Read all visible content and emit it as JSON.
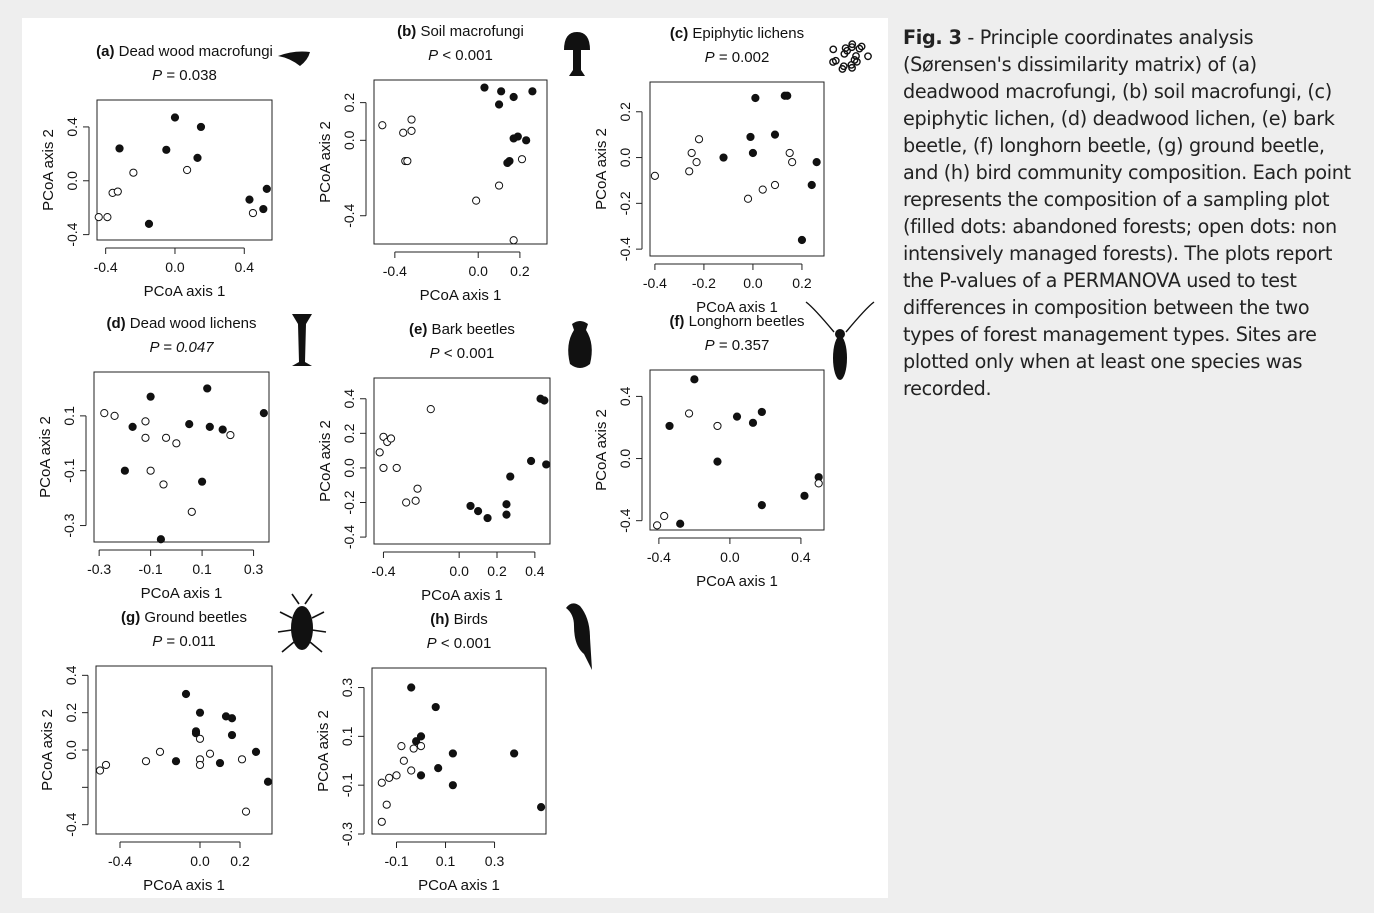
{
  "caption": {
    "label": "Fig. 3",
    "text": " - Principle coordinates analysis (Sørensen's dissimilarity matrix) of (a) deadwood macrofungi, (b) soil macrofungi, (c) epiphytic lichen, (d) deadwood lichen, (e) bark beetle, (f) longhorn beetle, (g) ground beetle, and (h) bird community composition. Each point represents the composition of a sampling plot (filled dots: abandoned forests; open dots: non intensively managed forests). The plots report the P-values of a PERMANOVA used to test differences in composition between the two types of forest management types. Sites are plotted only when at least one species was recorded."
  },
  "chart_data": [
    {
      "type": "scatter",
      "tag": "(a)",
      "title": "Dead wood macrofungi",
      "p_label": "P",
      "p_value": "= 0.038",
      "p_italic": false,
      "icon": "fungus-bracket-icon",
      "xlabel": "PCoA axis 1",
      "ylabel": "PCoA axis 2",
      "xlim": [
        -0.45,
        0.56
      ],
      "ylim": [
        -0.44,
        0.6
      ],
      "xticks": [
        -0.4,
        0.0,
        0.4
      ],
      "xtick_labels": [
        "-0.4",
        "0.0",
        "0.4"
      ],
      "yticks": [
        -0.4,
        0.0,
        0.4
      ],
      "ytick_labels": [
        "-0.4",
        "0.0",
        "0.4"
      ],
      "series": [
        {
          "marker": "filled",
          "points": [
            [
              -0.32,
              0.24
            ],
            [
              -0.05,
              0.23
            ],
            [
              0.0,
              0.47
            ],
            [
              0.15,
              0.4
            ],
            [
              0.13,
              0.17
            ],
            [
              -0.15,
              -0.32
            ],
            [
              0.43,
              -0.14
            ],
            [
              0.51,
              -0.21
            ],
            [
              0.53,
              -0.06
            ]
          ]
        },
        {
          "marker": "open",
          "points": [
            [
              -0.24,
              0.06
            ],
            [
              -0.36,
              -0.09
            ],
            [
              -0.33,
              -0.08
            ],
            [
              -0.44,
              -0.27
            ],
            [
              -0.39,
              -0.27
            ],
            [
              0.07,
              0.08
            ],
            [
              0.45,
              -0.24
            ]
          ]
        }
      ]
    },
    {
      "type": "scatter",
      "tag": "(b)",
      "title": "Soil macrofungi",
      "p_label": "P",
      "p_value": "< 0.001",
      "p_italic": false,
      "icon": "mushroom-icon",
      "xlabel": "PCoA axis 1",
      "ylabel": "PCoA axis 2",
      "xlim": [
        -0.5,
        0.33
      ],
      "ylim": [
        -0.55,
        0.32
      ],
      "xticks": [
        -0.4,
        0.0,
        0.2
      ],
      "xtick_labels": [
        "-0.4",
        "0.0",
        "0.2"
      ],
      "yticks": [
        -0.4,
        0.0,
        0.2
      ],
      "ytick_labels": [
        "-0.4",
        "0.0",
        "0.2"
      ],
      "series": [
        {
          "marker": "filled",
          "points": [
            [
              0.03,
              0.28
            ],
            [
              0.11,
              0.26
            ],
            [
              0.1,
              0.19
            ],
            [
              0.17,
              0.23
            ],
            [
              0.19,
              0.02
            ],
            [
              0.23,
              0.0
            ],
            [
              0.26,
              0.26
            ],
            [
              0.15,
              -0.11
            ],
            [
              0.14,
              -0.12
            ],
            [
              0.17,
              0.01
            ]
          ]
        },
        {
          "marker": "open",
          "points": [
            [
              -0.46,
              0.08
            ],
            [
              -0.36,
              0.04
            ],
            [
              -0.32,
              0.11
            ],
            [
              -0.32,
              0.05
            ],
            [
              -0.35,
              -0.11
            ],
            [
              -0.34,
              -0.11
            ],
            [
              -0.01,
              -0.32
            ],
            [
              0.1,
              -0.24
            ],
            [
              0.21,
              -0.1
            ],
            [
              0.17,
              -0.53
            ]
          ]
        }
      ]
    },
    {
      "type": "scatter",
      "tag": "(c)",
      "title": "Epiphytic lichens",
      "p_label": "P",
      "p_value": "= 0.002",
      "p_italic": false,
      "icon": "lichen-icon",
      "xlabel": "PCoA axis 1",
      "ylabel": "PCoA axis 2",
      "xlim": [
        -0.42,
        0.29
      ],
      "ylim": [
        -0.43,
        0.33
      ],
      "xticks": [
        -0.4,
        -0.2,
        0.0,
        0.2
      ],
      "xtick_labels": [
        "-0.4",
        "-0.2",
        "0.0",
        "0.2"
      ],
      "yticks": [
        -0.4,
        -0.2,
        0.0,
        0.2
      ],
      "ytick_labels": [
        "-0.4",
        "-0.2",
        "0.0",
        "0.2"
      ],
      "series": [
        {
          "marker": "filled",
          "points": [
            [
              0.01,
              0.26
            ],
            [
              0.13,
              0.27
            ],
            [
              0.14,
              0.27
            ],
            [
              -0.01,
              0.09
            ],
            [
              0.09,
              0.1
            ],
            [
              0.0,
              0.02
            ],
            [
              -0.12,
              0.0
            ],
            [
              0.26,
              -0.02
            ],
            [
              0.24,
              -0.12
            ],
            [
              0.2,
              -0.36
            ]
          ]
        },
        {
          "marker": "open",
          "points": [
            [
              -0.4,
              -0.08
            ],
            [
              -0.26,
              -0.06
            ],
            [
              -0.25,
              0.02
            ],
            [
              -0.23,
              -0.02
            ],
            [
              -0.22,
              0.08
            ],
            [
              -0.02,
              -0.18
            ],
            [
              0.04,
              -0.14
            ],
            [
              0.09,
              -0.12
            ],
            [
              0.15,
              0.02
            ],
            [
              0.16,
              -0.02
            ]
          ]
        }
      ]
    },
    {
      "type": "scatter",
      "tag": "(d)",
      "title": "Dead wood lichens",
      "p_label": "P",
      "p_value": "= 0.047",
      "p_italic": true,
      "icon": "cladonia-lichen-icon",
      "xlabel": "PCoA axis 1",
      "ylabel": "PCoA axis 2",
      "xlim": [
        -0.32,
        0.36
      ],
      "ylim": [
        -0.36,
        0.26
      ],
      "xticks": [
        -0.3,
        -0.1,
        0.1,
        0.3
      ],
      "xtick_labels": [
        "-0.3",
        "-0.1",
        "0.1",
        "0.3"
      ],
      "yticks": [
        -0.3,
        -0.1,
        0.1
      ],
      "ytick_labels": [
        "-0.3",
        "-0.1",
        "0.1"
      ],
      "series": [
        {
          "marker": "filled",
          "points": [
            [
              -0.1,
              0.17
            ],
            [
              0.12,
              0.2
            ],
            [
              0.34,
              0.11
            ],
            [
              -0.17,
              0.06
            ],
            [
              0.05,
              0.07
            ],
            [
              0.13,
              0.06
            ],
            [
              0.18,
              0.05
            ],
            [
              -0.2,
              -0.1
            ],
            [
              0.1,
              -0.14
            ],
            [
              -0.06,
              -0.35
            ]
          ]
        },
        {
          "marker": "open",
          "points": [
            [
              -0.28,
              0.11
            ],
            [
              -0.24,
              0.1
            ],
            [
              -0.12,
              0.08
            ],
            [
              -0.12,
              0.02
            ],
            [
              -0.04,
              0.02
            ],
            [
              0.0,
              0.0
            ],
            [
              0.21,
              0.03
            ],
            [
              -0.1,
              -0.1
            ],
            [
              -0.05,
              -0.15
            ],
            [
              0.06,
              -0.25
            ]
          ]
        }
      ]
    },
    {
      "type": "scatter",
      "tag": "(e)",
      "title": "Bark beetles",
      "p_label": "P",
      "p_value": "< 0.001",
      "p_italic": false,
      "icon": "bark-beetle-icon",
      "xlabel": "PCoA axis 1",
      "ylabel": "PCoA axis 2",
      "xlim": [
        -0.45,
        0.48
      ],
      "ylim": [
        -0.44,
        0.52
      ],
      "xticks": [
        -0.4,
        0.0,
        0.2,
        0.4
      ],
      "xtick_labels": [
        "-0.4",
        "0.0",
        "0.2",
        "0.4"
      ],
      "yticks": [
        -0.4,
        -0.2,
        0.0,
        0.2,
        0.4
      ],
      "ytick_labels": [
        "-0.4",
        "-0.2",
        "0.0",
        "0.2",
        "0.4"
      ],
      "series": [
        {
          "marker": "filled",
          "points": [
            [
              0.43,
              0.4
            ],
            [
              0.45,
              0.39
            ],
            [
              0.38,
              0.04
            ],
            [
              0.46,
              0.02
            ],
            [
              0.27,
              -0.05
            ],
            [
              0.25,
              -0.21
            ],
            [
              0.06,
              -0.22
            ],
            [
              0.1,
              -0.25
            ],
            [
              0.15,
              -0.29
            ],
            [
              0.25,
              -0.27
            ]
          ]
        },
        {
          "marker": "open",
          "points": [
            [
              -0.42,
              0.09
            ],
            [
              -0.4,
              0.18
            ],
            [
              -0.38,
              0.15
            ],
            [
              -0.36,
              0.17
            ],
            [
              -0.4,
              0.0
            ],
            [
              -0.33,
              0.0
            ],
            [
              -0.15,
              0.34
            ],
            [
              -0.22,
              -0.12
            ],
            [
              -0.23,
              -0.19
            ],
            [
              -0.28,
              -0.2
            ]
          ]
        }
      ]
    },
    {
      "type": "scatter",
      "tag": "(f)",
      "title": "Longhorn beetles",
      "p_label": "P",
      "p_value": "= 0.357",
      "p_italic": false,
      "icon": "longhorn-beetle-icon",
      "xlabel": "PCoA axis 1",
      "ylabel": "PCoA axis 2",
      "xlim": [
        -0.45,
        0.53
      ],
      "ylim": [
        -0.46,
        0.57
      ],
      "xticks": [
        -0.4,
        0.0,
        0.4
      ],
      "xtick_labels": [
        "-0.4",
        "0.0",
        "0.4"
      ],
      "yticks": [
        -0.4,
        0.0,
        0.4
      ],
      "ytick_labels": [
        "-0.4",
        "0.0",
        "0.4"
      ],
      "series": [
        {
          "marker": "filled",
          "points": [
            [
              -0.2,
              0.51
            ],
            [
              -0.34,
              0.21
            ],
            [
              0.04,
              0.27
            ],
            [
              0.13,
              0.23
            ],
            [
              0.18,
              0.3
            ],
            [
              -0.07,
              -0.02
            ],
            [
              0.5,
              -0.12
            ],
            [
              0.42,
              -0.24
            ],
            [
              0.18,
              -0.3
            ],
            [
              -0.28,
              -0.42
            ]
          ]
        },
        {
          "marker": "open",
          "points": [
            [
              -0.23,
              0.29
            ],
            [
              -0.07,
              0.21
            ],
            [
              0.5,
              -0.16
            ],
            [
              -0.37,
              -0.37
            ],
            [
              -0.41,
              -0.43
            ]
          ]
        }
      ]
    },
    {
      "type": "scatter",
      "tag": "(g)",
      "title": "Ground beetles",
      "p_label": "P",
      "p_value": "= 0.011",
      "p_italic": false,
      "icon": "ground-beetle-icon",
      "xlabel": "PCoA axis 1",
      "ylabel": "PCoA axis 2",
      "xlim": [
        -0.52,
        0.36
      ],
      "ylim": [
        -0.45,
        0.45
      ],
      "xticks": [
        -0.4,
        0.0,
        0.2
      ],
      "xtick_labels": [
        "-0.4",
        "0.0",
        "0.2"
      ],
      "yticks": [
        -0.4,
        -0.2,
        0.0,
        0.2,
        0.4
      ],
      "ytick_labels": [
        "-0.4",
        "0.0",
        "0.2",
        "0.4"
      ],
      "ytick_values_shown": [
        -0.4,
        0.0,
        0.2,
        0.4
      ],
      "series": [
        {
          "marker": "filled",
          "points": [
            [
              -0.07,
              0.3
            ],
            [
              0.0,
              0.2
            ],
            [
              0.13,
              0.18
            ],
            [
              0.16,
              0.17
            ],
            [
              -0.02,
              0.1
            ],
            [
              -0.02,
              0.09
            ],
            [
              0.16,
              0.08
            ],
            [
              -0.12,
              -0.06
            ],
            [
              0.1,
              -0.07
            ],
            [
              0.28,
              -0.01
            ],
            [
              0.34,
              -0.17
            ]
          ]
        },
        {
          "marker": "open",
          "points": [
            [
              -0.5,
              -0.11
            ],
            [
              -0.47,
              -0.08
            ],
            [
              -0.27,
              -0.06
            ],
            [
              -0.2,
              -0.01
            ],
            [
              0.0,
              0.06
            ],
            [
              0.0,
              -0.05
            ],
            [
              0.0,
              -0.08
            ],
            [
              0.05,
              -0.02
            ],
            [
              0.21,
              -0.05
            ],
            [
              0.23,
              -0.33
            ]
          ]
        }
      ]
    },
    {
      "type": "scatter",
      "tag": "(h)",
      "title": "Birds",
      "p_label": "P",
      "p_value": "< 0.001",
      "p_italic": false,
      "icon": "bird-icon",
      "xlabel": "PCoA axis 1",
      "ylabel": "PCoA axis 2",
      "xlim": [
        -0.2,
        0.51
      ],
      "ylim": [
        -0.3,
        0.38
      ],
      "xticks": [
        -0.1,
        0.1,
        0.3
      ],
      "xtick_labels": [
        "-0.1",
        "0.1",
        "0.3"
      ],
      "yticks": [
        -0.3,
        -0.1,
        0.1,
        0.3
      ],
      "ytick_labels": [
        "-0.3",
        "-0.1",
        "0.1",
        "0.3"
      ],
      "series": [
        {
          "marker": "filled",
          "points": [
            [
              -0.04,
              0.3
            ],
            [
              0.06,
              0.22
            ],
            [
              0.0,
              0.1
            ],
            [
              -0.02,
              0.08
            ],
            [
              0.13,
              0.03
            ],
            [
              0.38,
              0.03
            ],
            [
              0.07,
              -0.03
            ],
            [
              -0.0,
              -0.06
            ],
            [
              0.13,
              -0.1
            ],
            [
              0.49,
              -0.19
            ]
          ]
        },
        {
          "marker": "open",
          "points": [
            [
              -0.08,
              0.06
            ],
            [
              -0.03,
              0.05
            ],
            [
              -0.07,
              0.0
            ],
            [
              0.0,
              0.06
            ],
            [
              -0.1,
              -0.06
            ],
            [
              -0.13,
              -0.07
            ],
            [
              -0.16,
              -0.09
            ],
            [
              -0.14,
              -0.18
            ],
            [
              -0.16,
              -0.25
            ],
            [
              -0.04,
              -0.04
            ]
          ]
        }
      ]
    }
  ]
}
